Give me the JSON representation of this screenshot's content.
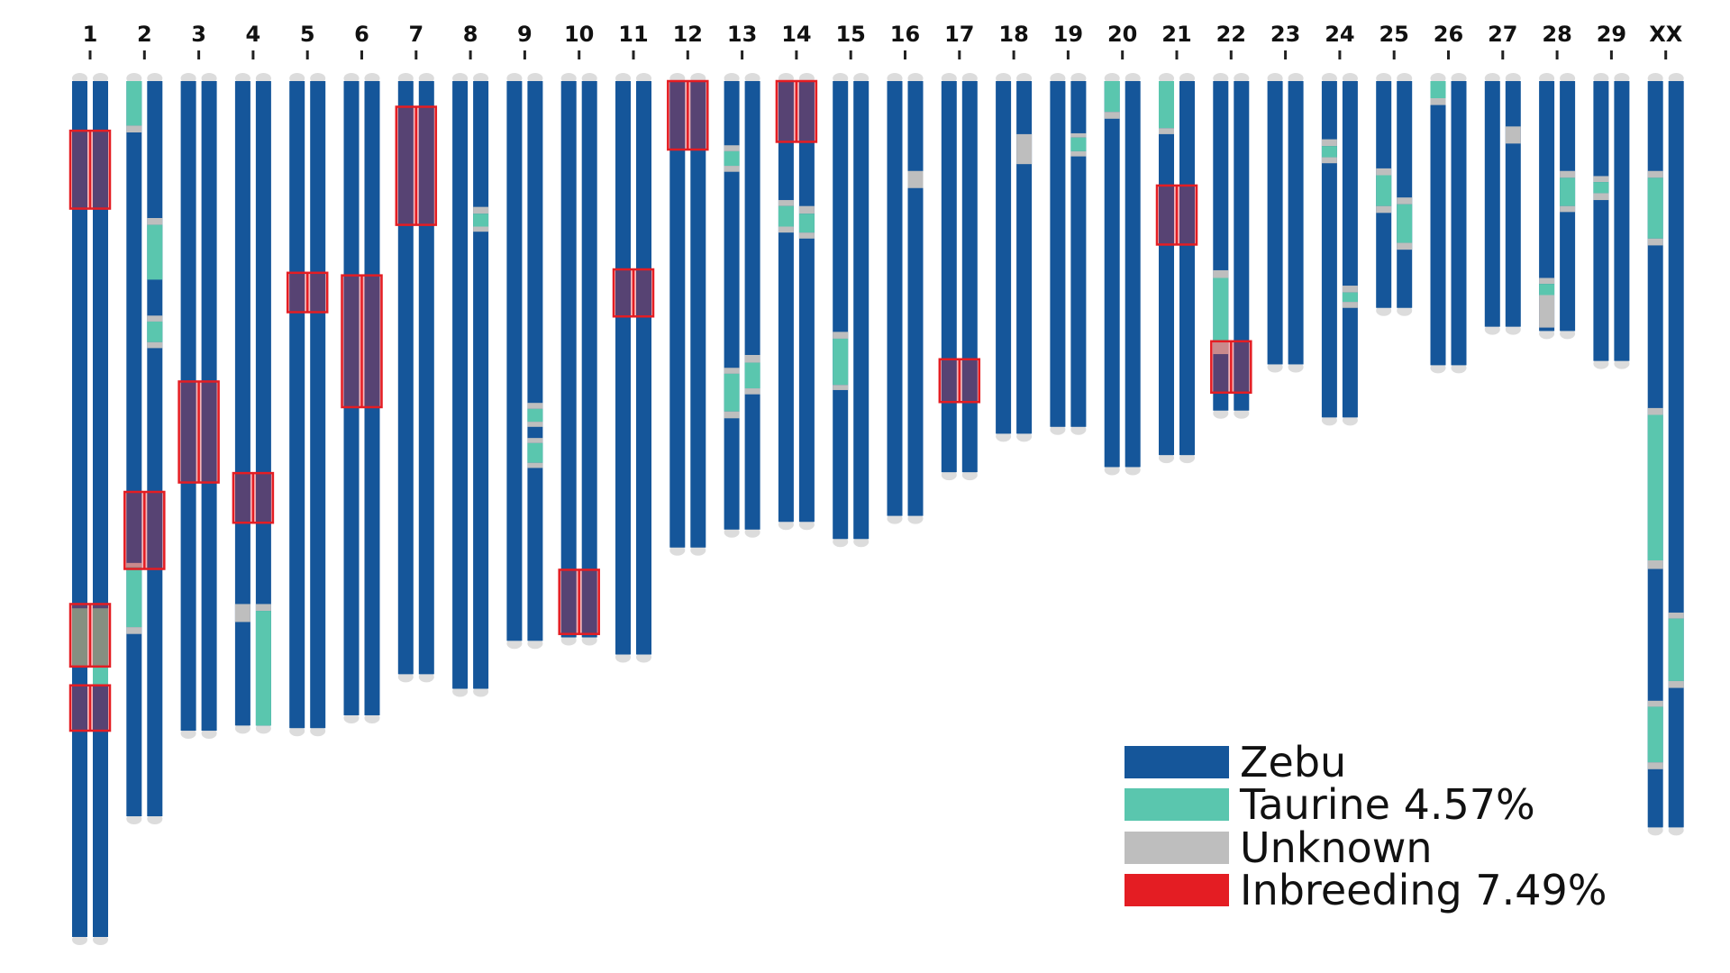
{
  "chart_data": {
    "type": "chromosome-painting",
    "title": "",
    "colors": {
      "zebu": "#15569a",
      "taurine": "#5ac6ae",
      "unknown": "#bebebe",
      "inbreeding": "#e41d23",
      "cap": "#dcdcdc"
    },
    "legend": {
      "placement": "bottom-right",
      "items": [
        {
          "key": "zebu",
          "label": "Zebu"
        },
        {
          "key": "taurine",
          "label": "Taurine 4.57%"
        },
        {
          "key": "unknown",
          "label": "Unknown"
        },
        {
          "key": "inbreeding",
          "label": "Inbreeding 7.49%"
        }
      ]
    },
    "units": "fraction of longest chromosome (chr 1)",
    "chromosomes": [
      {
        "label": "1",
        "length": 1.0,
        "haplotypes": [
          [
            [
              "taurine",
              0.616,
              0.684
            ]
          ],
          [
            [
              "taurine",
              0.616,
              0.706
            ]
          ]
        ],
        "roh": [
          [
            0.058,
            0.149
          ],
          [
            0.611,
            0.684
          ],
          [
            0.706,
            0.759
          ]
        ]
      },
      {
        "label": "2",
        "length": 0.859,
        "haplotypes": [
          [
            [
              "taurine",
              0.0,
              0.052
            ],
            [
              "unknown",
              0.052,
              0.06
            ],
            [
              "unknown",
              0.563,
              0.568
            ],
            [
              "taurine",
              0.568,
              0.638
            ],
            [
              "unknown",
              0.638,
              0.646
            ]
          ],
          [
            [
              "unknown",
              0.16,
              0.168
            ],
            [
              "taurine",
              0.168,
              0.232
            ],
            [
              "unknown",
              0.274,
              0.281
            ],
            [
              "taurine",
              0.281,
              0.305
            ],
            [
              "unknown",
              0.305,
              0.312
            ]
          ]
        ],
        "roh": [
          [
            0.48,
            0.57
          ]
        ]
      },
      {
        "label": "3",
        "length": 0.759,
        "haplotypes": [
          [],
          []
        ],
        "roh": [
          [
            0.351,
            0.469
          ]
        ]
      },
      {
        "label": "4",
        "length": 0.753,
        "haplotypes": [
          [
            [
              "unknown",
              0.611,
              0.632
            ]
          ],
          [
            [
              "unknown",
              0.611,
              0.619
            ],
            [
              "taurine",
              0.619,
              0.753
            ]
          ]
        ],
        "roh": [
          [
            0.458,
            0.516
          ]
        ]
      },
      {
        "label": "5",
        "length": 0.756,
        "haplotypes": [
          [],
          []
        ],
        "roh": [
          [
            0.224,
            0.27
          ]
        ]
      },
      {
        "label": "6",
        "length": 0.741,
        "haplotypes": [
          [],
          []
        ],
        "roh": [
          [
            0.227,
            0.381
          ]
        ]
      },
      {
        "label": "7",
        "length": 0.693,
        "haplotypes": [
          [],
          []
        ],
        "roh": [
          [
            0.03,
            0.168
          ]
        ]
      },
      {
        "label": "8",
        "length": 0.71,
        "haplotypes": [
          [],
          [
            [
              "unknown",
              0.147,
              0.155
            ],
            [
              "taurine",
              0.155,
              0.17
            ],
            [
              "unknown",
              0.17,
              0.176
            ]
          ]
        ],
        "roh": []
      },
      {
        "label": "9",
        "length": 0.654,
        "haplotypes": [
          [],
          [
            [
              "unknown",
              0.376,
              0.383
            ],
            [
              "taurine",
              0.383,
              0.398
            ],
            [
              "unknown",
              0.398,
              0.404
            ],
            [
              "unknown",
              0.417,
              0.423
            ],
            [
              "taurine",
              0.423,
              0.446
            ],
            [
              "unknown",
              0.446,
              0.452
            ]
          ]
        ],
        "roh": []
      },
      {
        "label": "10",
        "length": 0.65,
        "haplotypes": [
          [],
          []
        ],
        "roh": [
          [
            0.571,
            0.646
          ]
        ]
      },
      {
        "label": "11",
        "length": 0.67,
        "haplotypes": [
          [],
          []
        ],
        "roh": [
          [
            0.22,
            0.275
          ]
        ]
      },
      {
        "label": "12",
        "length": 0.545,
        "haplotypes": [
          [],
          []
        ],
        "roh": [
          [
            0.0,
            0.08
          ]
        ]
      },
      {
        "label": "13",
        "length": 0.524,
        "haplotypes": [
          [
            [
              "unknown",
              0.075,
              0.082
            ],
            [
              "taurine",
              0.082,
              0.099
            ],
            [
              "unknown",
              0.099,
              0.106
            ],
            [
              "unknown",
              0.335,
              0.342
            ],
            [
              "taurine",
              0.342,
              0.386
            ],
            [
              "unknown",
              0.386,
              0.394
            ]
          ],
          [
            [
              "unknown",
              0.32,
              0.329
            ],
            [
              "taurine",
              0.329,
              0.359
            ],
            [
              "unknown",
              0.359,
              0.366
            ]
          ]
        ],
        "roh": []
      },
      {
        "label": "14",
        "length": 0.515,
        "haplotypes": [
          [
            [
              "unknown",
              0.139,
              0.146
            ],
            [
              "taurine",
              0.146,
              0.17
            ],
            [
              "unknown",
              0.17,
              0.177
            ]
          ],
          [
            [
              "unknown",
              0.146,
              0.155
            ],
            [
              "taurine",
              0.155,
              0.177
            ],
            [
              "unknown",
              0.177,
              0.184
            ]
          ]
        ],
        "roh": [
          [
            0.0,
            0.071
          ]
        ]
      },
      {
        "label": "15",
        "length": 0.535,
        "haplotypes": [
          [
            [
              "unknown",
              0.293,
              0.301
            ],
            [
              "taurine",
              0.301,
              0.355
            ],
            [
              "unknown",
              0.355,
              0.361
            ]
          ],
          []
        ],
        "roh": []
      },
      {
        "label": "16",
        "length": 0.508,
        "haplotypes": [
          [],
          [
            [
              "unknown",
              0.105,
              0.125
            ]
          ]
        ],
        "roh": []
      },
      {
        "label": "17",
        "length": 0.457,
        "haplotypes": [
          [],
          []
        ],
        "roh": [
          [
            0.325,
            0.375
          ]
        ]
      },
      {
        "label": "18",
        "length": 0.412,
        "haplotypes": [
          [],
          [
            [
              "unknown",
              0.062,
              0.097
            ]
          ]
        ],
        "roh": []
      },
      {
        "label": "19",
        "length": 0.404,
        "haplotypes": [
          [],
          [
            [
              "unknown",
              0.061,
              0.066
            ],
            [
              "taurine",
              0.066,
              0.082
            ],
            [
              "unknown",
              0.082,
              0.088
            ]
          ]
        ],
        "roh": []
      },
      {
        "label": "20",
        "length": 0.451,
        "haplotypes": [
          [
            [
              "taurine",
              0.0,
              0.036
            ],
            [
              "unknown",
              0.036,
              0.044
            ]
          ],
          []
        ],
        "roh": []
      },
      {
        "label": "21",
        "length": 0.437,
        "haplotypes": [
          [
            [
              "taurine",
              0.0,
              0.055
            ],
            [
              "unknown",
              0.055,
              0.062
            ]
          ],
          []
        ],
        "roh": [
          [
            0.122,
            0.191
          ]
        ]
      },
      {
        "label": "22",
        "length": 0.385,
        "haplotypes": [
          [
            [
              "unknown",
              0.221,
              0.23
            ],
            [
              "taurine",
              0.23,
              0.304
            ],
            [
              "unknown",
              0.304,
              0.319
            ]
          ],
          []
        ],
        "roh": [
          [
            0.304,
            0.364
          ]
        ]
      },
      {
        "label": "23",
        "length": 0.331,
        "haplotypes": [
          [],
          []
        ],
        "roh": []
      },
      {
        "label": "24",
        "length": 0.393,
        "haplotypes": [
          [
            [
              "unknown",
              0.068,
              0.076
            ],
            [
              "taurine",
              0.076,
              0.089
            ],
            [
              "unknown",
              0.089,
              0.096
            ]
          ],
          [
            [
              "unknown",
              0.239,
              0.247
            ],
            [
              "taurine",
              0.247,
              0.258
            ],
            [
              "unknown",
              0.258,
              0.265
            ]
          ]
        ],
        "roh": []
      },
      {
        "label": "25",
        "length": 0.265,
        "haplotypes": [
          [
            [
              "unknown",
              0.102,
              0.11
            ],
            [
              "taurine",
              0.11,
              0.146
            ],
            [
              "unknown",
              0.146,
              0.154
            ]
          ],
          [
            [
              "unknown",
              0.136,
              0.144
            ],
            [
              "taurine",
              0.144,
              0.189
            ],
            [
              "unknown",
              0.189,
              0.197
            ]
          ]
        ],
        "roh": []
      },
      {
        "label": "26",
        "length": 0.332,
        "haplotypes": [
          [
            [
              "taurine",
              0.0,
              0.02
            ],
            [
              "unknown",
              0.02,
              0.028
            ]
          ],
          []
        ],
        "roh": []
      },
      {
        "label": "27",
        "length": 0.287,
        "haplotypes": [
          [],
          [
            [
              "unknown",
              0.053,
              0.073
            ]
          ]
        ],
        "roh": []
      },
      {
        "label": "28",
        "length": 0.292,
        "haplotypes": [
          [
            [
              "unknown",
              0.23,
              0.237
            ],
            [
              "taurine",
              0.237,
              0.25
            ],
            [
              "unknown",
              0.25,
              0.288
            ]
          ],
          [
            [
              "unknown",
              0.105,
              0.113
            ],
            [
              "taurine",
              0.113,
              0.146
            ],
            [
              "unknown",
              0.146,
              0.153
            ]
          ]
        ],
        "roh": []
      },
      {
        "label": "29",
        "length": 0.327,
        "haplotypes": [
          [
            [
              "unknown",
              0.111,
              0.118
            ],
            [
              "taurine",
              0.118,
              0.131
            ],
            [
              "unknown",
              0.131,
              0.139
            ]
          ],
          []
        ],
        "roh": []
      },
      {
        "label": "XX",
        "length": 0.872,
        "haplotypes": [
          [
            [
              "unknown",
              0.105,
              0.113
            ],
            [
              "taurine",
              0.113,
              0.184
            ],
            [
              "unknown",
              0.184,
              0.192
            ],
            [
              "unknown",
              0.382,
              0.39
            ],
            [
              "taurine",
              0.39,
              0.56
            ],
            [
              "unknown",
              0.56,
              0.57
            ],
            [
              "unknown",
              0.724,
              0.731
            ],
            [
              "taurine",
              0.731,
              0.796
            ],
            [
              "unknown",
              0.796,
              0.804
            ]
          ],
          [
            [
              "unknown",
              0.621,
              0.628
            ],
            [
              "taurine",
              0.628,
              0.701
            ],
            [
              "unknown",
              0.701,
              0.709
            ]
          ]
        ],
        "roh": []
      }
    ]
  }
}
